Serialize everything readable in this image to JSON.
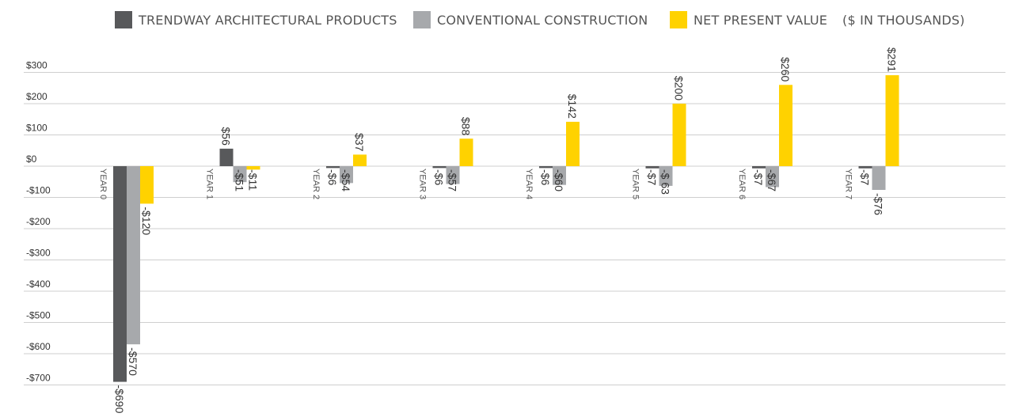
{
  "legend": {
    "unit_note": "($ IN THOUSANDS)"
  },
  "chart_data": {
    "type": "bar",
    "title": "",
    "xlabel": "",
    "ylabel": "",
    "unit": "($ IN THOUSANDS)",
    "legend_position": "top",
    "grid": true,
    "categories": [
      "YEAR 0",
      "YEAR 1",
      "YEAR 2",
      "YEAR 3",
      "YEAR 4",
      "YEAR 5",
      "YEAR 6",
      "YEAR 7"
    ],
    "ylim": [
      -700,
      300
    ],
    "yticks": [
      300,
      200,
      100,
      0,
      -100,
      -200,
      -300,
      -400,
      -500,
      -600,
      -700
    ],
    "ytick_labels": [
      "$300",
      "$200",
      "$100",
      "$0",
      "-$100",
      "-$200",
      "-$300",
      "-$400",
      "-$500",
      "-$600",
      "-$700"
    ],
    "series": [
      {
        "name": "TRENDWAY ARCHITECTURAL PRODUCTS",
        "color": "#58595b",
        "values": [
          -690,
          56,
          -6,
          -6,
          -6,
          -7,
          -7,
          -7
        ],
        "labels": [
          "-$690",
          "$56",
          "-$6",
          "-$6",
          "-$6",
          "-$7",
          "-$7",
          "-$7"
        ]
      },
      {
        "name": "CONVENTIONAL CONSTRUCTION",
        "color": "#a7a9ac",
        "values": [
          -570,
          -51,
          -54,
          -57,
          -60,
          -63,
          -67,
          -76
        ],
        "labels": [
          "-$570",
          "-$51",
          "-$54",
          "-$57",
          "-$60",
          "-$ 63",
          "-$67",
          "-$76"
        ]
      },
      {
        "name": "NET PRESENT VALUE",
        "color": "#ffd200",
        "values": [
          -120,
          -11,
          37,
          88,
          142,
          200,
          260,
          291
        ],
        "labels": [
          "-$120",
          "-$11",
          "$37",
          "$88",
          "$142",
          "$200",
          "$260",
          "$291"
        ]
      }
    ]
  }
}
